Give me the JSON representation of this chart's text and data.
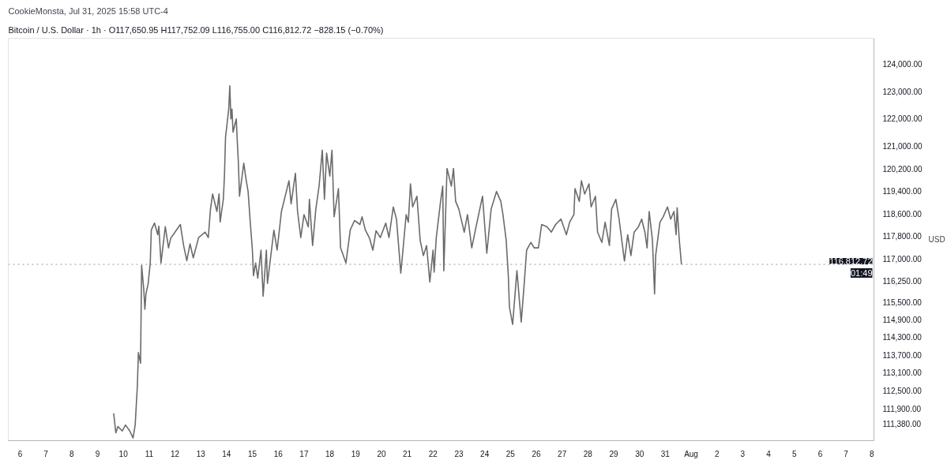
{
  "chart_data": {
    "type": "line",
    "title": "Bitcoin / U.S. Dollar · 1h · O117,650.95 H117,752.09 L116,755.00 C116,812.72 −828.15 (−0.70%)",
    "ylabel": "USD",
    "annotations": [
      "CookieMonsta, Jul 31, 2025 15:58 UTC-4",
      "01:49"
    ],
    "log": "y",
    "grid": false,
    "marker": "none",
    "line_style": "solid",
    "xlim": [
      "2025-07-05T13:00",
      "2025-08-08T02:00"
    ],
    "xticks": [
      {
        "value": "2025-07-06",
        "label": "6"
      },
      {
        "value": "2025-07-07",
        "label": "7"
      },
      {
        "value": "2025-07-08",
        "label": "8"
      },
      {
        "value": "2025-07-09",
        "label": "9"
      },
      {
        "value": "2025-07-10",
        "label": "10"
      },
      {
        "value": "2025-07-11",
        "label": "11"
      },
      {
        "value": "2025-07-12",
        "label": "12"
      },
      {
        "value": "2025-07-13",
        "label": "13"
      },
      {
        "value": "2025-07-14",
        "label": "14"
      },
      {
        "value": "2025-07-15",
        "label": "15"
      },
      {
        "value": "2025-07-16",
        "label": "16"
      },
      {
        "value": "2025-07-17",
        "label": "17"
      },
      {
        "value": "2025-07-18",
        "label": "18"
      },
      {
        "value": "2025-07-19",
        "label": "19"
      },
      {
        "value": "2025-07-20",
        "label": "20"
      },
      {
        "value": "2025-07-21",
        "label": "21"
      },
      {
        "value": "2025-07-22",
        "label": "22"
      },
      {
        "value": "2025-07-23",
        "label": "23"
      },
      {
        "value": "2025-07-24",
        "label": "24"
      },
      {
        "value": "2025-07-25",
        "label": "25"
      },
      {
        "value": "2025-07-26",
        "label": "26"
      },
      {
        "value": "2025-07-27",
        "label": "27"
      },
      {
        "value": "2025-07-28",
        "label": "28"
      },
      {
        "value": "2025-07-29",
        "label": "29"
      },
      {
        "value": "2025-07-30",
        "label": "30"
      },
      {
        "value": "2025-07-31",
        "label": "31"
      },
      {
        "value": "2025-08-01",
        "label": "Aug"
      },
      {
        "value": "2025-08-02",
        "label": "2"
      },
      {
        "value": "2025-08-03",
        "label": "3"
      },
      {
        "value": "2025-08-04",
        "label": "4"
      },
      {
        "value": "2025-08-05",
        "label": "5"
      },
      {
        "value": "2025-08-06",
        "label": "6"
      },
      {
        "value": "2025-08-07",
        "label": "7"
      },
      {
        "value": "2025-08-08",
        "label": "8"
      }
    ],
    "ylim": [
      110830,
      124960
    ],
    "yticks": [
      {
        "value": 111380,
        "label": "111,380.00"
      },
      {
        "value": 111900,
        "label": "111,900.00"
      },
      {
        "value": 112500,
        "label": "112,500.00"
      },
      {
        "value": 113100,
        "label": "113,100.00"
      },
      {
        "value": 113700,
        "label": "113,700.00"
      },
      {
        "value": 114300,
        "label": "114,300.00"
      },
      {
        "value": 114900,
        "label": "114,900.00"
      },
      {
        "value": 115500,
        "label": "115,500.00"
      },
      {
        "value": 116250,
        "label": "116,250.00"
      },
      {
        "value": 117000,
        "label": "117,000.00"
      },
      {
        "value": 117800,
        "label": "117,800.00"
      },
      {
        "value": 118600,
        "label": "118,600.00"
      },
      {
        "value": 119400,
        "label": "119,400.00"
      },
      {
        "value": 120200,
        "label": "120,200.00"
      },
      {
        "value": 121000,
        "label": "121,000.00"
      },
      {
        "value": 122000,
        "label": "122,000.00"
      },
      {
        "value": 123000,
        "label": "123,000.00"
      },
      {
        "value": 124000,
        "label": "124,000.00"
      }
    ],
    "ref_lines": [
      {
        "axis": "y",
        "value": 116812.72,
        "label": "116,812.72",
        "color": "#9598a1",
        "line_style": "dotted"
      }
    ],
    "series": [
      {
        "color": "#6b6b6b",
        "x": [
          "2025-07-09T15:00",
          "2025-07-09T17:00",
          "2025-07-09T19:00",
          "2025-07-09T23:00",
          "2025-07-10T02:00",
          "2025-07-10T06:00",
          "2025-07-10T09:00",
          "2025-07-10T11:00",
          "2025-07-10T13:00",
          "2025-07-10T14:00",
          "2025-07-10T16:00",
          "2025-07-10T17:00",
          "2025-07-10T19:00",
          "2025-07-10T20:00",
          "2025-07-10T21:00",
          "2025-07-10T23:00",
          "2025-07-11T01:00",
          "2025-07-11T02:00",
          "2025-07-11T05:00",
          "2025-07-11T08:00",
          "2025-07-11T09:00",
          "2025-07-11T11:00",
          "2025-07-11T15:00",
          "2025-07-11T18:00",
          "2025-07-11T20:00",
          "2025-07-12T00:00",
          "2025-07-12T05:00",
          "2025-07-12T08:00",
          "2025-07-12T11:00",
          "2025-07-12T14:00",
          "2025-07-12T17:00",
          "2025-07-12T22:00",
          "2025-07-13T04:00",
          "2025-07-13T07:00",
          "2025-07-13T09:00",
          "2025-07-13T11:00",
          "2025-07-13T15:00",
          "2025-07-13T17:00",
          "2025-07-13T18:00",
          "2025-07-13T21:00",
          "2025-07-13T22:00",
          "2025-07-13T23:00",
          "2025-07-14T02:00",
          "2025-07-14T03:00",
          "2025-07-14T04:00",
          "2025-07-14T05:00",
          "2025-07-14T06:00",
          "2025-07-14T09:00",
          "2025-07-14T10:00",
          "2025-07-14T11:00",
          "2025-07-14T12:00",
          "2025-07-14T16:00",
          "2025-07-14T18:00",
          "2025-07-14T20:00",
          "2025-07-14T22:00",
          "2025-07-15T00:00",
          "2025-07-15T01:00",
          "2025-07-15T03:00",
          "2025-07-15T05:00",
          "2025-07-15T08:00",
          "2025-07-15T10:00",
          "2025-07-15T13:00",
          "2025-07-15T14:00",
          "2025-07-15T20:00",
          "2025-07-15T23:00",
          "2025-07-16T03:00",
          "2025-07-16T10:00",
          "2025-07-16T12:00",
          "2025-07-16T16:00",
          "2025-07-16T18:00",
          "2025-07-16T21:00",
          "2025-07-17T00:00",
          "2025-07-17T04:00",
          "2025-07-17T05:00",
          "2025-07-17T08:00",
          "2025-07-17T11:00",
          "2025-07-17T14:00",
          "2025-07-17T17:00",
          "2025-07-17T19:00",
          "2025-07-17T21:00",
          "2025-07-18T00:00",
          "2025-07-18T02:00",
          "2025-07-18T04:00",
          "2025-07-18T08:00",
          "2025-07-18T10:00",
          "2025-07-18T15:00",
          "2025-07-18T19:00",
          "2025-07-18T23:00",
          "2025-07-19T04:00",
          "2025-07-19T06:00",
          "2025-07-19T09:00",
          "2025-07-19T13:00",
          "2025-07-19T16:00",
          "2025-07-19T19:00",
          "2025-07-19T23:00",
          "2025-07-20T04:00",
          "2025-07-20T07:00",
          "2025-07-20T11:00",
          "2025-07-20T14:00",
          "2025-07-20T18:00",
          "2025-07-20T20:00",
          "2025-07-20T23:00",
          "2025-07-21T01:00",
          "2025-07-21T03:00",
          "2025-07-21T05:00",
          "2025-07-21T09:00",
          "2025-07-21T12:00",
          "2025-07-21T15:00",
          "2025-07-21T18:00",
          "2025-07-21T21:00",
          "2025-07-22T00:00",
          "2025-07-22T01:00",
          "2025-07-22T03:00",
          "2025-07-22T07:00",
          "2025-07-22T09:00",
          "2025-07-22T10:00",
          "2025-07-22T13:00",
          "2025-07-22T17:00",
          "2025-07-22T19:00",
          "2025-07-22T21:00",
          "2025-07-23T00:00",
          "2025-07-23T05:00",
          "2025-07-23T08:00",
          "2025-07-23T12:00",
          "2025-07-23T16:00",
          "2025-07-23T22:00",
          "2025-07-24T02:00",
          "2025-07-24T06:00",
          "2025-07-24T11:00",
          "2025-07-24T15:00",
          "2025-07-24T17:00",
          "2025-07-24T20:00",
          "2025-07-24T22:00",
          "2025-07-24T23:00",
          "2025-07-25T02:00",
          "2025-07-25T06:00",
          "2025-07-25T10:00",
          "2025-07-25T13:00",
          "2025-07-25T15:00",
          "2025-07-25T19:00",
          "2025-07-25T22:00",
          "2025-07-26T02:00",
          "2025-07-26T05:00",
          "2025-07-26T10:00",
          "2025-07-26T14:00",
          "2025-07-26T18:00",
          "2025-07-26T23:00",
          "2025-07-27T04:00",
          "2025-07-27T07:00",
          "2025-07-27T11:00",
          "2025-07-27T12:00",
          "2025-07-27T16:00",
          "2025-07-27T18:00",
          "2025-07-27T21:00",
          "2025-07-28T01:00",
          "2025-07-28T03:00",
          "2025-07-28T07:00",
          "2025-07-28T09:00",
          "2025-07-28T13:00",
          "2025-07-28T16:00",
          "2025-07-28T20:00",
          "2025-07-28T22:00",
          "2025-07-29T02:00",
          "2025-07-29T05:00",
          "2025-07-29T10:00",
          "2025-07-29T13:00",
          "2025-07-29T16:00",
          "2025-07-29T19:00",
          "2025-07-29T23:00",
          "2025-07-30T02:00",
          "2025-07-30T05:00",
          "2025-07-30T07:00",
          "2025-07-30T09:00",
          "2025-07-30T12:00",
          "2025-07-30T14:00",
          "2025-07-30T15:00",
          "2025-07-30T19:00",
          "2025-07-30T22:00",
          "2025-07-31T02:00",
          "2025-07-31T05:00",
          "2025-07-31T08:00",
          "2025-07-31T10:00",
          "2025-07-31T11:00",
          "2025-07-31T13:00",
          "2025-07-31T15:00"
        ],
        "values": [
          111740,
          111090,
          111300,
          111150,
          111350,
          111150,
          110920,
          111350,
          112640,
          113780,
          113420,
          116780,
          115930,
          115260,
          115790,
          116120,
          116860,
          118020,
          118260,
          117850,
          118150,
          116860,
          118130,
          117390,
          117720,
          117940,
          118210,
          117480,
          116940,
          117530,
          117040,
          117750,
          117940,
          117750,
          118750,
          119290,
          118670,
          119290,
          118300,
          119110,
          119930,
          121320,
          122350,
          123200,
          121990,
          122350,
          121510,
          121990,
          121140,
          120390,
          119210,
          120390,
          119840,
          119380,
          118300,
          117310,
          116420,
          116860,
          116330,
          117310,
          115710,
          117310,
          116150,
          118010,
          117310,
          118670,
          119760,
          118940,
          120030,
          118670,
          117750,
          118560,
          118130,
          119100,
          117470,
          118750,
          119570,
          120860,
          119100,
          120750,
          119930,
          120860,
          118480,
          119480,
          117390,
          116860,
          118020,
          118350,
          118210,
          118480,
          118020,
          117720,
          117310,
          117990,
          117750,
          118260,
          117750,
          118830,
          118400,
          116510,
          117310,
          118560,
          118290,
          119650,
          118830,
          119210,
          117660,
          117120,
          117470,
          116200,
          117310,
          116540,
          117750,
          119030,
          119570,
          116590,
          120200,
          119570,
          120200,
          119030,
          118750,
          117940,
          118560,
          117390,
          118130,
          119210,
          117200,
          118750,
          119380,
          119030,
          118560,
          117660,
          116410,
          115340,
          114740,
          116590,
          114820,
          116250,
          117310,
          117580,
          117390,
          117390,
          118210,
          118130,
          117940,
          118210,
          118400,
          117850,
          118290,
          118560,
          119480,
          119030,
          119760,
          119290,
          119650,
          118830,
          119210,
          117940,
          117580,
          118290,
          117470,
          118750,
          119100,
          118400,
          116930,
          117850,
          117120,
          117940,
          118130,
          118400,
          117940,
          117390,
          118670,
          117660,
          115790,
          117120,
          118290,
          118480,
          118830,
          118400,
          118670,
          117850,
          118800,
          117660,
          116810
        ]
      }
    ]
  }
}
